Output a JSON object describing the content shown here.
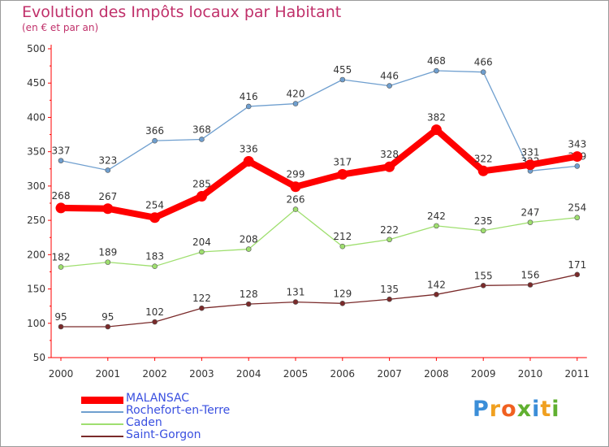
{
  "chart_data": {
    "type": "line",
    "title": "Evolution des Impôts locaux par Habitant",
    "subtitle": "(en € et par an)",
    "xlabel": "",
    "ylabel": "",
    "x": [
      "2000",
      "2001",
      "2002",
      "2003",
      "2004",
      "2005",
      "2006",
      "2007",
      "2008",
      "2009",
      "2010",
      "2011"
    ],
    "ylim": [
      50,
      500
    ],
    "yticks": [
      50,
      100,
      150,
      200,
      250,
      300,
      350,
      400,
      450,
      500
    ],
    "grid": false,
    "legend_position": "bottom-left",
    "series": [
      {
        "name": "MALANSAC",
        "color": "#ff0000",
        "values": [
          268,
          267,
          254,
          285,
          336,
          299,
          317,
          328,
          382,
          322,
          331,
          343
        ]
      },
      {
        "name": "Rochefort-en-Terre",
        "color": "#6f9fcf",
        "values": [
          337,
          323,
          366,
          368,
          416,
          420,
          455,
          446,
          468,
          466,
          322,
          329
        ]
      },
      {
        "name": "Caden",
        "color": "#9fdf6f",
        "values": [
          182,
          189,
          183,
          204,
          208,
          266,
          212,
          222,
          242,
          235,
          247,
          254
        ]
      },
      {
        "name": "Saint-Gorgon",
        "color": "#7a2a2a",
        "values": [
          95,
          95,
          102,
          122,
          128,
          131,
          129,
          135,
          142,
          155,
          156,
          171
        ]
      }
    ]
  },
  "branding": {
    "logo_letters": [
      "P",
      "r",
      "o",
      "x",
      "i",
      "t",
      "i"
    ],
    "logo_colors": [
      "#3b8ed8",
      "#f0a020",
      "#f06020",
      "#60b030",
      "#3b8ed8",
      "#f0a020",
      "#60b030"
    ]
  }
}
